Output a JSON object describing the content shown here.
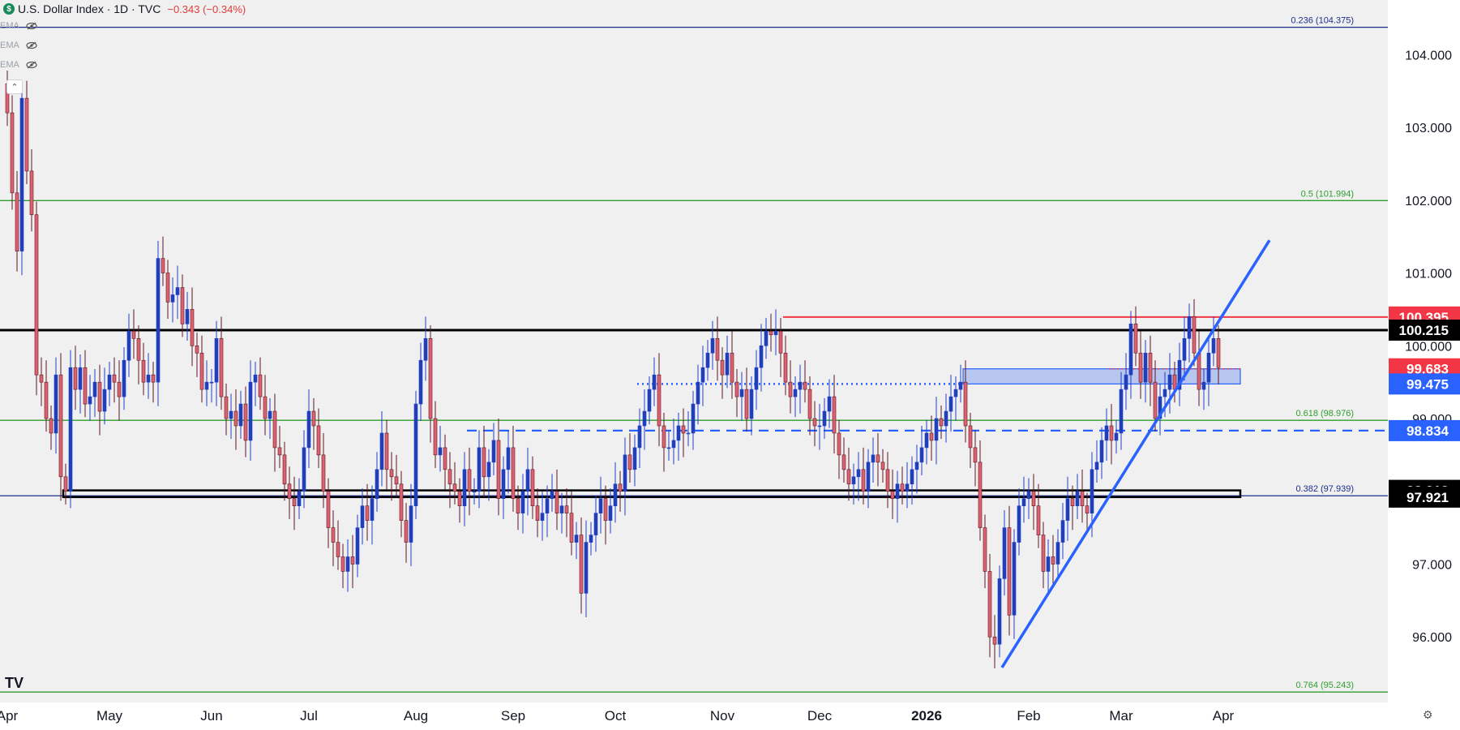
{
  "header": {
    "symbol_icon": "dollar-icon",
    "title": "U.S. Dollar Index · 1D · TVC",
    "change": "−0.343 (−0.34%)"
  },
  "indicators": [
    {
      "label": "EMA",
      "icon": "eye-hidden-icon"
    },
    {
      "label": "EMA",
      "icon": "eye-hidden-icon"
    },
    {
      "label": "EMA",
      "icon": "eye-hidden-icon"
    }
  ],
  "collapse_icon": "chevron-up-icon",
  "logo": "TV",
  "settings_icon": "gear-icon",
  "colors": {
    "background": "#f0f0f0",
    "up": "#1f3fbf",
    "down": "#e06070",
    "fib_green": "#2e9e2e",
    "fib_navy": "#1c2e8c",
    "resistance_red": "#f23645",
    "support_black": "#000000",
    "trend_blue": "#2962ff",
    "zone_fill": "#b6c6ee"
  },
  "chart_data": {
    "type": "candlestick",
    "title": "U.S. Dollar Index · 1D · TVC",
    "ylim": [
      95.1,
      104.75
    ],
    "y_ticks": [
      96.0,
      97.0,
      99.0,
      100.0,
      101.0,
      102.0,
      103.0,
      104.0
    ],
    "y_tick_labels": [
      "96.000",
      "97.000",
      "99.000",
      "100.000",
      "101.000",
      "102.000",
      "103.000",
      "104.000"
    ],
    "x_labels": [
      "Apr",
      "May",
      "Jun",
      "Jul",
      "Aug",
      "Sep",
      "Oct",
      "Nov",
      "Dec",
      "2026",
      "Feb",
      "Mar",
      "Apr"
    ],
    "x_label_bar_index": [
      0,
      21,
      42,
      62,
      84,
      104,
      125,
      147,
      167,
      189,
      210,
      229,
      250
    ],
    "fib_levels": [
      {
        "label": "0.236 (104.375)",
        "value": 104.375,
        "color": "navy"
      },
      {
        "label": "0.5 (101.994)",
        "value": 101.994,
        "color": "green"
      },
      {
        "label": "0.618 (98.976)",
        "value": 98.976,
        "color": "green"
      },
      {
        "label": "0.382 (97.939)",
        "value": 97.939,
        "color": "navy"
      },
      {
        "label": "0.764 (95.243)",
        "value": 95.243,
        "color": "green"
      }
    ],
    "price_tags": [
      {
        "text": "100.395",
        "value": 100.395,
        "bg": "#f23645",
        "fg": "#ffffff"
      },
      {
        "text": "100.215",
        "value": 100.215,
        "bg": "#000000",
        "fg": "#ffffff"
      },
      {
        "text": "99.683",
        "value": 99.683,
        "bg": "#f23645",
        "fg": "#ffffff"
      },
      {
        "text": "99.475",
        "value": 99.475,
        "bg": "#2962ff",
        "fg": "#ffffff"
      },
      {
        "text": "98.834",
        "value": 98.834,
        "bg": "#2962ff",
        "fg": "#ffffff"
      },
      {
        "text": "98.013",
        "value": 98.013,
        "bg": "#000000",
        "fg": "#ffffff"
      },
      {
        "text": "97.921",
        "value": 97.921,
        "bg": "#000000",
        "fg": "#ffffff"
      }
    ],
    "drawings": {
      "support_zone": {
        "from_bar": 12,
        "to_bar": 254,
        "top": 98.013,
        "bottom": 97.921
      },
      "horizontal_100_215": {
        "value": 100.215
      },
      "resistance_100_395": {
        "from_bar": 160,
        "value": 100.395
      },
      "zone_99": {
        "from_bar": 197,
        "to_bar": 254,
        "top": 99.683,
        "bottom": 99.475
      },
      "dotted_99_475": {
        "from_bar": 130,
        "to_bar": 197,
        "value": 99.475
      },
      "dashed_98_834": {
        "from_bar": 95,
        "value": 98.834
      },
      "red_dotted_99_683": {
        "from_bar": 227,
        "to_bar": 254,
        "value": 99.683
      },
      "trendline": {
        "from_bar": 205,
        "from_value": 95.58,
        "to_bar": 260,
        "to_value": 101.45
      }
    },
    "closes": [
      103.2,
      102.1,
      101.3,
      103.4,
      102.4,
      101.8,
      99.6,
      99.5,
      99.0,
      98.8,
      99.6,
      98.2,
      98.0,
      99.7,
      99.4,
      99.7,
      99.2,
      99.3,
      99.5,
      99.1,
      99.4,
      99.6,
      99.5,
      99.3,
      99.8,
      100.2,
      100.1,
      99.8,
      99.5,
      99.6,
      99.5,
      101.2,
      101.0,
      100.6,
      100.7,
      100.8,
      100.3,
      100.5,
      100.0,
      99.9,
      99.4,
      99.5,
      99.5,
      100.1,
      99.3,
      99.0,
      99.1,
      98.9,
      99.2,
      98.7,
      99.5,
      99.6,
      99.3,
      99.0,
      99.1,
      98.6,
      98.5,
      98.1,
      97.9,
      97.8,
      98.0,
      98.6,
      99.1,
      98.9,
      98.5,
      98.0,
      97.5,
      97.3,
      97.1,
      96.9,
      97.1,
      97.0,
      97.5,
      97.8,
      97.6,
      97.9,
      98.3,
      98.8,
      98.3,
      98.2,
      98.1,
      97.6,
      97.3,
      97.8,
      99.2,
      99.8,
      100.1,
      99.0,
      98.5,
      98.6,
      98.3,
      98.1,
      98.0,
      97.8,
      98.3,
      98.0,
      98.0,
      98.6,
      98.2,
      98.4,
      98.7,
      97.9,
      98.3,
      98.6,
      97.9,
      97.7,
      98.0,
      98.3,
      97.8,
      97.6,
      97.7,
      97.9,
      98.0,
      97.7,
      97.8,
      97.7,
      97.3,
      97.4,
      96.6,
      97.3,
      97.4,
      97.7,
      97.9,
      97.6,
      97.8,
      98.1,
      98.0,
      98.5,
      98.3,
      98.6,
      98.9,
      99.1,
      99.4,
      99.6,
      98.9,
      98.6,
      98.6,
      98.7,
      98.9,
      98.8,
      98.8,
      99.2,
      99.5,
      99.7,
      99.9,
      100.1,
      99.8,
      99.6,
      99.9,
      99.5,
      99.3,
      99.4,
      99.0,
      99.4,
      99.7,
      100.0,
      100.2,
      100.15,
      100.2,
      99.9,
      99.5,
      99.3,
      99.4,
      99.5,
      99.4,
      99.0,
      98.9,
      98.9,
      99.1,
      99.3,
      98.8,
      98.5,
      98.3,
      98.1,
      98.2,
      98.3,
      98.0,
      98.4,
      98.5,
      98.4,
      98.3,
      98.0,
      97.9,
      98.1,
      98.0,
      98.1,
      98.3,
      98.4,
      98.6,
      98.8,
      98.7,
      99.0,
      98.9,
      99.1,
      99.3,
      99.4,
      99.5,
      98.9,
      98.6,
      98.4,
      97.5,
      96.9,
      96.0,
      95.9,
      96.8,
      97.5,
      96.3,
      97.3,
      97.8,
      97.9,
      98.0,
      97.8,
      97.4,
      96.9,
      97.1,
      97.0,
      97.3,
      97.6,
      97.9,
      97.8,
      98.0,
      97.8,
      97.7,
      98.3,
      98.4,
      98.7,
      98.9,
      98.7,
      98.8,
      99.4,
      99.6,
      100.3,
      99.9,
      99.5,
      99.9,
      99.5,
      99.0,
      99.3,
      99.4,
      99.6,
      99.4,
      99.8,
      100.1,
      100.4,
      99.9,
      99.4,
      99.5,
      99.9,
      100.1,
      99.7
    ]
  }
}
